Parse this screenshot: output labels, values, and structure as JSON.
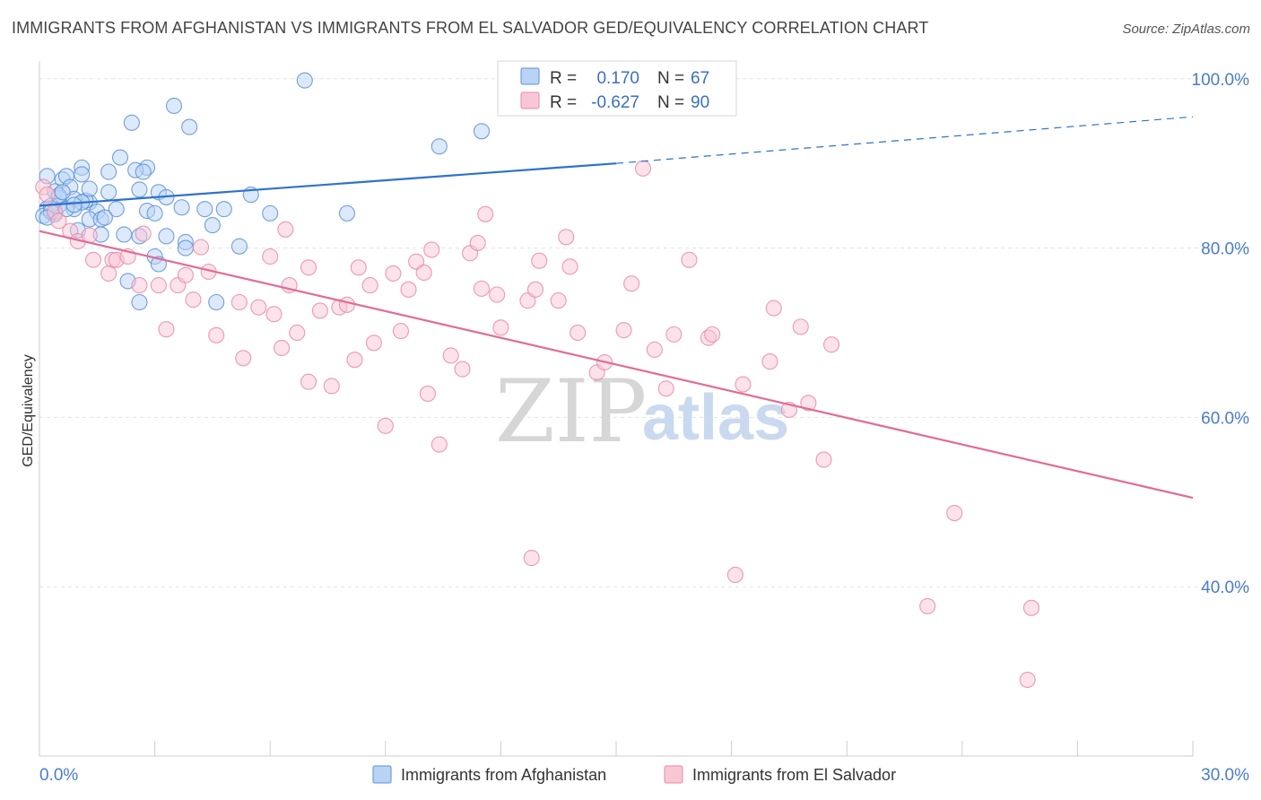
{
  "title": "IMMIGRANTS FROM AFGHANISTAN VS IMMIGRANTS FROM EL SALVADOR GED/EQUIVALENCY CORRELATION CHART",
  "source": "Source: ZipAtlas.com",
  "watermark": {
    "part1": "ZIP",
    "part2": "atlas"
  },
  "legend": {
    "rows": [
      {
        "r_label": "R =",
        "r_value": "0.170",
        "n_label": "N =",
        "n_value": "67"
      },
      {
        "r_label": "R =",
        "r_value": "-0.627",
        "n_label": "N =",
        "n_value": "90"
      }
    ]
  },
  "colors": {
    "afghanistan_fill": "#b9d3f5",
    "afghanistan_stroke": "#5a8fd6",
    "afghanistan_line": "#2f72c9",
    "elsalvador_fill": "#f9c6d6",
    "elsalvador_stroke": "#e889a8",
    "elsalvador_line": "#e26b96",
    "tick_label": "#4a7cc9",
    "grid": "#e3e3e3"
  },
  "chart_data": {
    "type": "scatter",
    "title": "IMMIGRANTS FROM AFGHANISTAN VS IMMIGRANTS FROM EL SALVADOR GED/EQUIVALENCY CORRELATION CHART",
    "xlabel": "",
    "ylabel": "GED/Equivalency",
    "xlim": [
      0,
      30
    ],
    "ylim": [
      20,
      104
    ],
    "x_tick_labels": [
      {
        "value": 0,
        "label": "0.0%"
      },
      {
        "value": 30,
        "label": "30.0%"
      }
    ],
    "y_tick_labels": [
      {
        "value": 100,
        "label": "100.0%"
      },
      {
        "value": 80,
        "label": "80.0%"
      },
      {
        "value": 60,
        "label": "60.0%"
      },
      {
        "value": 40,
        "label": "40.0%"
      }
    ],
    "grid": true,
    "legend_position": "top-center",
    "series": [
      {
        "name": "Immigrants from Afghanistan",
        "color_key": "afghanistan",
        "R": 0.17,
        "N": 67,
        "trend": {
          "x0": 0,
          "y0": 85.0,
          "x1": 15,
          "y1": 90.0,
          "dashed_to_x": 30,
          "dashed_to_y": 95.5
        },
        "points": [
          [
            6.9,
            99.8
          ],
          [
            3.5,
            96.8
          ],
          [
            2.4,
            94.8
          ],
          [
            3.9,
            94.3
          ],
          [
            11.5,
            93.8
          ],
          [
            10.4,
            92.0
          ],
          [
            2.1,
            90.7
          ],
          [
            1.1,
            89.5
          ],
          [
            2.8,
            89.5
          ],
          [
            1.8,
            89.0
          ],
          [
            2.5,
            89.2
          ],
          [
            2.7,
            89.0
          ],
          [
            1.1,
            88.7
          ],
          [
            0.6,
            88.1
          ],
          [
            0.7,
            88.5
          ],
          [
            0.2,
            88.5
          ],
          [
            0.8,
            87.2
          ],
          [
            0.4,
            86.7
          ],
          [
            1.8,
            86.6
          ],
          [
            2.6,
            86.9
          ],
          [
            3.1,
            86.6
          ],
          [
            5.5,
            86.3
          ],
          [
            0.5,
            85.9
          ],
          [
            1.3,
            85.4
          ],
          [
            1.2,
            85.6
          ],
          [
            0.9,
            85.8
          ],
          [
            3.3,
            86.0
          ],
          [
            0.2,
            84.7
          ],
          [
            0.9,
            84.6
          ],
          [
            2.0,
            84.6
          ],
          [
            1.5,
            84.3
          ],
          [
            3.7,
            84.8
          ],
          [
            4.3,
            84.6
          ],
          [
            4.8,
            84.6
          ],
          [
            6.0,
            84.1
          ],
          [
            8.0,
            84.1
          ],
          [
            2.8,
            84.4
          ],
          [
            3.0,
            84.1
          ],
          [
            0.1,
            83.8
          ],
          [
            0.4,
            84.0
          ],
          [
            1.3,
            83.4
          ],
          [
            1.6,
            83.4
          ],
          [
            1.7,
            83.6
          ],
          [
            4.5,
            82.7
          ],
          [
            1.0,
            82.1
          ],
          [
            1.6,
            81.6
          ],
          [
            2.2,
            81.6
          ],
          [
            2.6,
            81.4
          ],
          [
            3.3,
            81.4
          ],
          [
            3.8,
            80.7
          ],
          [
            3.8,
            80.0
          ],
          [
            5.2,
            80.2
          ],
          [
            3.0,
            79.0
          ],
          [
            3.1,
            78.1
          ],
          [
            2.3,
            76.1
          ],
          [
            2.6,
            73.6
          ],
          [
            4.6,
            73.6
          ],
          [
            0.5,
            85.0
          ],
          [
            1.1,
            85.4
          ],
          [
            0.3,
            85.0
          ],
          [
            0.3,
            84.3
          ],
          [
            0.7,
            84.6
          ],
          [
            0.5,
            86.2
          ],
          [
            0.2,
            83.6
          ],
          [
            1.3,
            87.0
          ],
          [
            0.9,
            85.1
          ],
          [
            0.6,
            86.6
          ]
        ]
      },
      {
        "name": "Immigrants from El Salvador",
        "color_key": "elsalvador",
        "R": -0.627,
        "N": 90,
        "trend": {
          "x0": 0,
          "y0": 82.0,
          "x1": 30,
          "y1": 50.5
        },
        "points": [
          [
            0.1,
            87.2
          ],
          [
            0.2,
            86.3
          ],
          [
            0.4,
            84.3
          ],
          [
            0.5,
            83.2
          ],
          [
            0.8,
            82.0
          ],
          [
            1.0,
            80.8
          ],
          [
            1.3,
            81.5
          ],
          [
            1.4,
            78.6
          ],
          [
            1.9,
            78.6
          ],
          [
            2.0,
            78.6
          ],
          [
            1.8,
            77.0
          ],
          [
            2.3,
            79.0
          ],
          [
            2.6,
            75.6
          ],
          [
            3.1,
            75.6
          ],
          [
            3.6,
            75.6
          ],
          [
            2.7,
            81.7
          ],
          [
            3.8,
            76.8
          ],
          [
            4.2,
            80.1
          ],
          [
            4.4,
            77.2
          ],
          [
            4.0,
            73.9
          ],
          [
            3.3,
            70.4
          ],
          [
            4.6,
            69.7
          ],
          [
            5.2,
            73.6
          ],
          [
            5.3,
            67.0
          ],
          [
            5.7,
            73.0
          ],
          [
            6.0,
            79.0
          ],
          [
            6.1,
            72.2
          ],
          [
            6.5,
            75.6
          ],
          [
            6.3,
            68.2
          ],
          [
            6.4,
            82.2
          ],
          [
            6.7,
            70.0
          ],
          [
            7.0,
            64.2
          ],
          [
            7.0,
            77.7
          ],
          [
            7.3,
            72.6
          ],
          [
            7.6,
            63.7
          ],
          [
            7.8,
            73.0
          ],
          [
            8.0,
            73.3
          ],
          [
            8.2,
            66.8
          ],
          [
            8.3,
            77.7
          ],
          [
            8.6,
            75.6
          ],
          [
            8.7,
            68.8
          ],
          [
            9.2,
            77.0
          ],
          [
            9.0,
            59.0
          ],
          [
            9.4,
            70.2
          ],
          [
            9.6,
            75.1
          ],
          [
            9.8,
            78.4
          ],
          [
            10.0,
            77.1
          ],
          [
            10.2,
            79.8
          ],
          [
            10.1,
            62.8
          ],
          [
            10.4,
            56.8
          ],
          [
            10.7,
            67.3
          ],
          [
            11.0,
            65.7
          ],
          [
            11.2,
            79.4
          ],
          [
            11.4,
            80.6
          ],
          [
            11.5,
            75.2
          ],
          [
            11.6,
            84.0
          ],
          [
            11.9,
            74.5
          ],
          [
            12.0,
            70.6
          ],
          [
            12.7,
            73.8
          ],
          [
            12.9,
            75.1
          ],
          [
            12.8,
            43.4
          ],
          [
            13.0,
            78.5
          ],
          [
            13.5,
            73.8
          ],
          [
            13.7,
            81.3
          ],
          [
            13.8,
            77.8
          ],
          [
            14.0,
            70.0
          ],
          [
            14.5,
            65.3
          ],
          [
            14.7,
            66.5
          ],
          [
            15.2,
            70.3
          ],
          [
            15.4,
            75.8
          ],
          [
            15.7,
            89.4
          ],
          [
            16.0,
            68.0
          ],
          [
            16.3,
            63.4
          ],
          [
            16.5,
            69.8
          ],
          [
            16.9,
            78.6
          ],
          [
            17.4,
            69.4
          ],
          [
            17.5,
            69.8
          ],
          [
            18.1,
            41.4
          ],
          [
            18.3,
            63.9
          ],
          [
            19.0,
            66.6
          ],
          [
            19.1,
            72.9
          ],
          [
            19.5,
            60.9
          ],
          [
            19.8,
            70.7
          ],
          [
            20.0,
            61.7
          ],
          [
            20.4,
            55.0
          ],
          [
            20.6,
            68.6
          ],
          [
            23.8,
            48.7
          ],
          [
            23.1,
            37.7
          ],
          [
            25.8,
            37.5
          ],
          [
            25.7,
            29.0
          ]
        ]
      }
    ]
  }
}
